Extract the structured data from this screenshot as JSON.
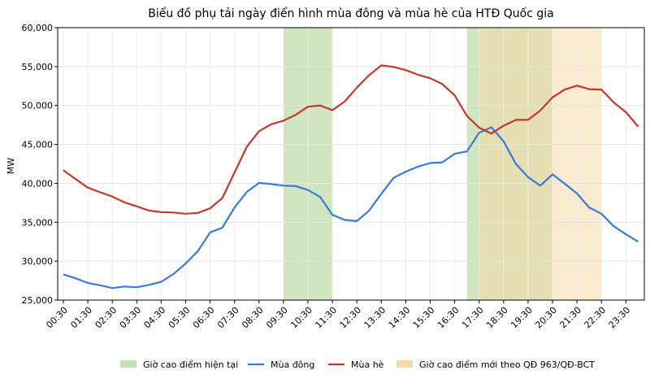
{
  "chart_data": {
    "type": "line",
    "title": "Biểu đồ phụ tải ngày điển hình mùa đông và mùa hè của HTĐ Quốc gia",
    "xlabel": "",
    "ylabel": "MW",
    "ylim": [
      25000,
      60000
    ],
    "yticks": [
      25000,
      30000,
      35000,
      40000,
      45000,
      50000,
      55000,
      60000
    ],
    "ytick_labels": [
      "25,000",
      "30,000",
      "35,000",
      "40,000",
      "45,000",
      "50,000",
      "55,000",
      "60,000"
    ],
    "xtick_labels": [
      "00:30",
      "01:30",
      "02:30",
      "03:30",
      "04:30",
      "05:30",
      "06:30",
      "07:30",
      "08:30",
      "09:30",
      "10:30",
      "11:30",
      "12:30",
      "13:30",
      "14:30",
      "15:30",
      "16:30",
      "17:30",
      "18:30",
      "19:30",
      "20:30",
      "21:30",
      "22:30",
      "23:30"
    ],
    "grid": true,
    "legend_position": "bottom",
    "x": [
      "00:30",
      "01:00",
      "01:30",
      "02:00",
      "02:30",
      "03:00",
      "03:30",
      "04:00",
      "04:30",
      "05:00",
      "05:30",
      "06:00",
      "06:30",
      "07:00",
      "07:30",
      "08:00",
      "08:30",
      "09:00",
      "09:30",
      "10:00",
      "10:30",
      "11:00",
      "11:30",
      "12:00",
      "12:30",
      "13:00",
      "13:30",
      "14:00",
      "14:30",
      "15:00",
      "15:30",
      "16:00",
      "16:30",
      "17:00",
      "17:30",
      "18:00",
      "18:30",
      "19:00",
      "19:30",
      "20:00",
      "20:30",
      "21:00",
      "21:30",
      "22:00",
      "22:30",
      "23:00",
      "23:30",
      "24:00"
    ],
    "series": [
      {
        "name": "Mùa đông",
        "color": "#3a7bd5",
        "values": [
          28300,
          27800,
          27200,
          26900,
          26550,
          26750,
          26650,
          26950,
          27350,
          28350,
          29700,
          31300,
          33700,
          34300,
          36900,
          38900,
          40050,
          39900,
          39700,
          39650,
          39150,
          38250,
          35950,
          35300,
          35150,
          36500,
          38650,
          40700,
          41500,
          42150,
          42600,
          42700,
          43800,
          44100,
          46500,
          47200,
          45400,
          42500,
          40800,
          39700,
          41150,
          39950,
          38700,
          36900,
          36100,
          34500,
          33450,
          32500
        ]
      },
      {
        "name": "Mùa hè",
        "color": "#c0392b",
        "values": [
          41700,
          40550,
          39450,
          38850,
          38300,
          37550,
          37050,
          36500,
          36300,
          36250,
          36100,
          36200,
          36800,
          38100,
          41400,
          44700,
          46700,
          47600,
          48050,
          48800,
          49850,
          50000,
          49400,
          50500,
          52300,
          53900,
          55150,
          54950,
          54550,
          53950,
          53500,
          52750,
          51300,
          48650,
          47150,
          46400,
          47400,
          48150,
          48150,
          49350,
          51050,
          52050,
          52550,
          52100,
          52050,
          50400,
          49150,
          47300
        ]
      }
    ],
    "shaded_regions": [
      {
        "name": "Giờ cao điểm hiện tại",
        "color": "#c5e0b4",
        "ranges": [
          [
            "09:30",
            "11:30"
          ],
          [
            "17:00",
            "20:30"
          ]
        ]
      },
      {
        "name": "Giờ cao điểm mới theo QĐ 963/QĐ-BCT",
        "color": "#f5d9a8",
        "ranges": [
          [
            "17:30",
            "22:30"
          ]
        ]
      }
    ],
    "legend": [
      {
        "label": "Giờ cao điểm hiện tại",
        "kind": "patch",
        "color": "#c5e0b4"
      },
      {
        "label": "Mùa đông",
        "kind": "line",
        "color": "#3a7bd5"
      },
      {
        "label": "Mùa hè",
        "kind": "line",
        "color": "#c0392b"
      },
      {
        "label": "Giờ cao điểm mới theo QĐ 963/QĐ-BCT",
        "kind": "patch",
        "color": "#f5d9a8"
      }
    ]
  }
}
